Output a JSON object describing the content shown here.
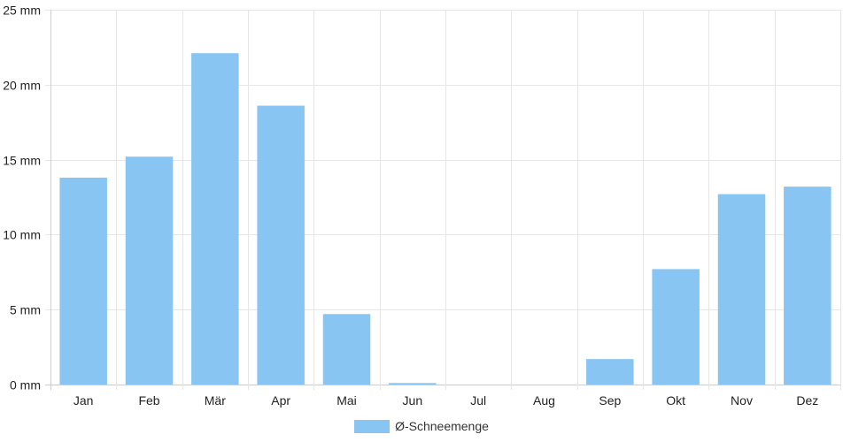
{
  "chart_data": {
    "type": "bar",
    "categories": [
      "Jan",
      "Feb",
      "Mär",
      "Apr",
      "Mai",
      "Jun",
      "Jul",
      "Aug",
      "Sep",
      "Okt",
      "Nov",
      "Dez"
    ],
    "series": [
      {
        "name": "Ø-Schneemenge",
        "values": [
          13.8,
          15.2,
          22.1,
          18.6,
          4.7,
          0.1,
          0,
          0,
          1.7,
          7.7,
          12.7,
          13.2
        ]
      }
    ],
    "ylim": [
      0,
      25
    ],
    "yticks": [
      0,
      5,
      10,
      15,
      20,
      25
    ],
    "ytick_labels": [
      "0 mm",
      "5 mm",
      "10 mm",
      "15 mm",
      "20 mm",
      "25 mm"
    ],
    "grid": true,
    "legend_position": "bottom-center",
    "colors": {
      "bar": "#89c5f2",
      "grid": "#e6e6e6",
      "axis": "#cccccc"
    }
  }
}
